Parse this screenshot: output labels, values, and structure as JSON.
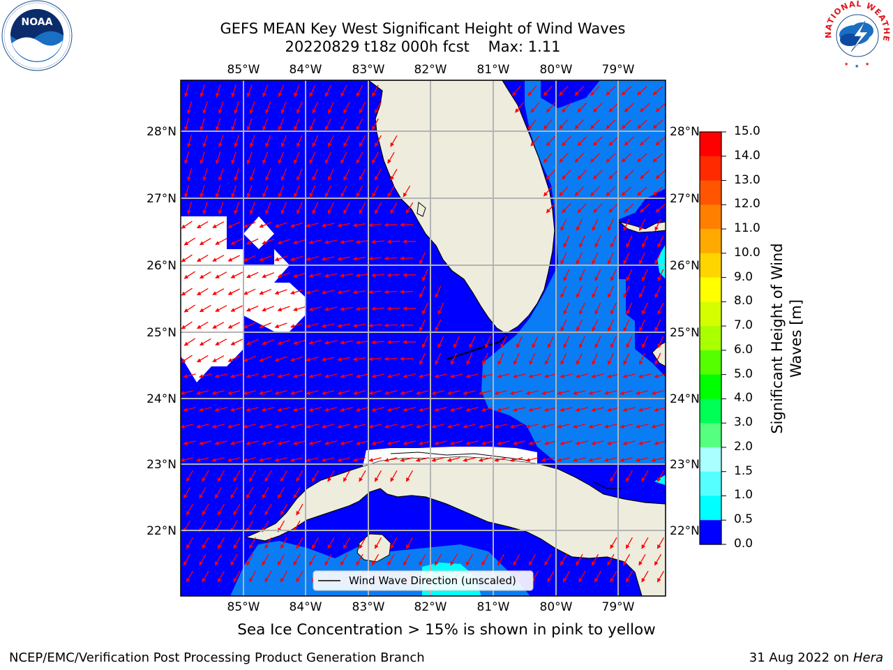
{
  "title": {
    "line1": "GEFS MEAN Key West Significant Height of Wind Waves",
    "line2": "20220829 t18z 000h fcst    Max: 1.11"
  },
  "map": {
    "lon_labels": [
      "85°W",
      "84°W",
      "83°W",
      "82°W",
      "81°W",
      "80°W",
      "79°W"
    ],
    "lat_labels": [
      "28°N",
      "27°N",
      "26°N",
      "25°N",
      "24°N",
      "23°N",
      "22°N"
    ],
    "legend_label": "Wind Wave Direction (unscaled)",
    "colors": {
      "land": "#eeecdd",
      "sea_low": "#0000ff",
      "sea_mid": "#0a7df5",
      "sea_high": "#00ffff",
      "arrows": "#ff0000",
      "grid": "#b4b4b4"
    }
  },
  "colorbar": {
    "tick_labels": [
      "15.0",
      "14.0",
      "13.0",
      "12.0",
      "11.0",
      "10.0",
      "9.0",
      "8.0",
      "7.0",
      "6.0",
      "5.0",
      "4.0",
      "3.0",
      "2.0",
      "1.5",
      "1.0",
      "0.5",
      "0.0"
    ],
    "title": "Significant Height of Wind Waves [m]",
    "colors": [
      "#ff0000",
      "#ff2a00",
      "#ff5500",
      "#ff8000",
      "#ffaa00",
      "#ffd500",
      "#ffff00",
      "#d5ff00",
      "#aaff00",
      "#55ff00",
      "#00ff00",
      "#00ff55",
      "#55ff80",
      "#aaffff",
      "#55ffff",
      "#00ffff",
      "#0a7df5",
      "#0000ff"
    ]
  },
  "subtitle": "Sea Ice Concentration > 15% is shown in pink to yellow",
  "footer": {
    "left": "NCEP/EMC/Verification Post Processing Product Generation Branch",
    "right_date": "31 Aug 2022 on",
    "right_host": "Hera"
  },
  "logos": {
    "noaa": "NOAA",
    "nws_ring": "NATIONAL WEATHER SERVICE"
  }
}
